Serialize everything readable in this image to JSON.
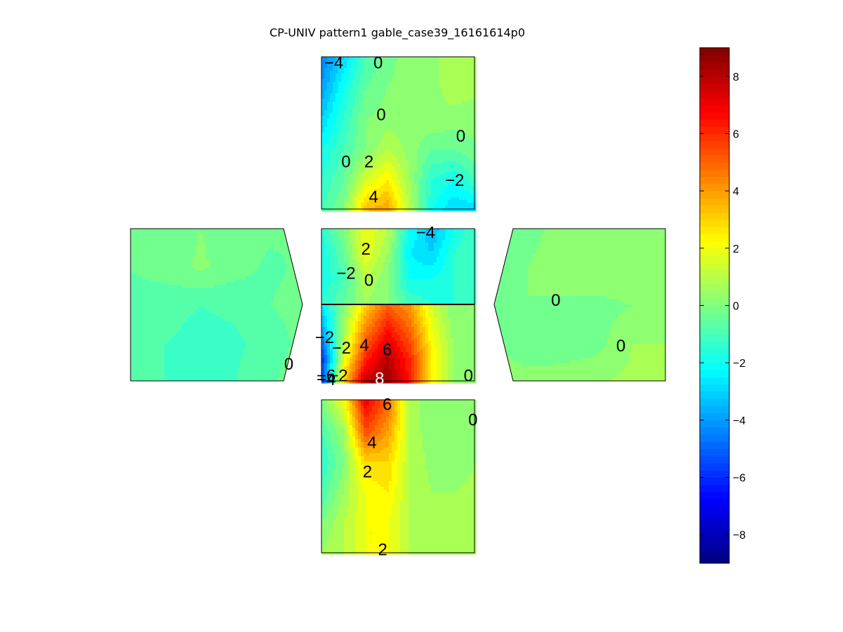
{
  "chart_data": {
    "type": "heatmap",
    "title": "CP-UNIV pattern1 gable_case39_16161614p0",
    "colormap": "jet",
    "clim": [
      -9,
      9
    ],
    "colorbar": {
      "ticks": [
        -8,
        -6,
        -4,
        -2,
        0,
        2,
        4,
        6,
        8
      ],
      "tick_labels": [
        "−8",
        "−6",
        "−4",
        "−2",
        "0",
        "2",
        "4",
        "6",
        "8"
      ]
    },
    "panels": [
      {
        "name": "top-wall",
        "grid": [
          [
            -4.5,
            -3,
            -1,
            -0.2,
            0.3,
            0.5,
            0.5,
            0.6
          ],
          [
            -4,
            -2,
            -0.5,
            0,
            0.2,
            0.3,
            0.8,
            0.7
          ],
          [
            -3,
            -1.5,
            0,
            0.2,
            0.3,
            0.4,
            0.3,
            0.1
          ],
          [
            -2,
            -1,
            0,
            1,
            0.3,
            -0.5,
            -0.5,
            0
          ],
          [
            -1.5,
            -0.5,
            1.5,
            2.5,
            0.5,
            -1.5,
            -2,
            -1
          ],
          [
            -1,
            0,
            3.5,
            4,
            1,
            -2,
            -3,
            -3
          ]
        ],
        "contour_labels": [
          {
            "text": "−4",
            "gx": 0.08,
            "gy": 0.04
          },
          {
            "text": "0",
            "gx": 0.37,
            "gy": 0.04
          },
          {
            "text": "0",
            "gx": 0.39,
            "gy": 0.38
          },
          {
            "text": "0",
            "gx": 0.91,
            "gy": 0.52
          },
          {
            "text": "0",
            "gx": 0.16,
            "gy": 0.69
          },
          {
            "text": "2",
            "gx": 0.31,
            "gy": 0.69
          },
          {
            "text": "−2",
            "gx": 0.87,
            "gy": 0.81
          },
          {
            "text": "4",
            "gx": 0.34,
            "gy": 0.92
          }
        ]
      },
      {
        "name": "left-wall",
        "grid": [
          [
            -0.5,
            -0.4,
            0,
            -0.2,
            -0.4,
            -0.5
          ],
          [
            -0.5,
            -0.3,
            0.1,
            -0.3,
            -0.6,
            -0.4
          ],
          [
            -0.6,
            -0.8,
            -1,
            -0.9,
            -0.5,
            -0.3
          ],
          [
            -0.7,
            -1,
            -1.2,
            -1.1,
            -0.8,
            -0.3
          ],
          [
            -0.8,
            -1,
            -1.1,
            -1,
            -0.6,
            0
          ]
        ],
        "contour_labels": [
          {
            "text": "0",
            "gx": 0.92,
            "gy": 0.89
          }
        ]
      },
      {
        "name": "roof-upper",
        "grid": [
          [
            -1.5,
            0,
            2,
            1,
            -2,
            -3.5,
            -2,
            -1
          ],
          [
            -2,
            -0.5,
            2,
            0.5,
            -2.5,
            -3,
            -1.5,
            -1
          ],
          [
            -2,
            -1,
            1,
            0,
            -2,
            -2,
            -1.5,
            -1
          ],
          [
            -1.5,
            -0.5,
            0.5,
            0,
            -1,
            -1.5,
            -1.5,
            -1
          ]
        ],
        "contour_labels": [
          {
            "text": "−4",
            "gx": 0.68,
            "gy": 0.05
          },
          {
            "text": "2",
            "gx": 0.29,
            "gy": 0.27
          },
          {
            "text": "−2",
            "gx": 0.16,
            "gy": 0.59
          },
          {
            "text": "0",
            "gx": 0.31,
            "gy": 0.68
          }
        ]
      },
      {
        "name": "roof-lower",
        "grid": [
          [
            -2.5,
            0,
            3,
            5,
            4,
            1.5,
            0,
            0
          ],
          [
            -4,
            0.5,
            4.5,
            6.5,
            5,
            2,
            0.3,
            0
          ],
          [
            -6,
            1.5,
            6,
            8,
            6,
            2.5,
            0.5,
            0
          ],
          [
            -6,
            3,
            8,
            8.5,
            6.5,
            2.5,
            0.5,
            0
          ]
        ],
        "contour_labels": [
          {
            "text": "−2",
            "gx": 0.02,
            "gy": 0.43
          },
          {
            "text": "−2",
            "gx": 0.13,
            "gy": 0.57
          },
          {
            "text": "4",
            "gx": 0.28,
            "gy": 0.53
          },
          {
            "text": "6",
            "gx": 0.43,
            "gy": 0.59
          },
          {
            "text": "−6",
            "gx": 0.03,
            "gy": 0.93
          },
          {
            "text": "−2",
            "gx": 0.11,
            "gy": 0.93
          },
          {
            "text": "−4",
            "gx": 0.03,
            "gy": 0.98
          },
          {
            "text": "8",
            "gx": 0.38,
            "gy": 0.97,
            "white": true
          },
          {
            "text": "0",
            "gx": 0.96,
            "gy": 0.93
          }
        ]
      },
      {
        "name": "right-wall",
        "grid": [
          [
            -0.5,
            -0.3,
            0.3,
            0.4,
            0.4,
            0.4
          ],
          [
            -0.3,
            0,
            0.5,
            0.5,
            0.5,
            0.5
          ],
          [
            -0.2,
            0,
            -0.2,
            -0.2,
            0,
            0.2
          ],
          [
            0,
            -0.3,
            -0.3,
            -0.2,
            0.5,
            0.5
          ],
          [
            0.3,
            0.2,
            0.3,
            0.5,
            0.6,
            0.6
          ]
        ],
        "contour_labels": [
          {
            "text": "0",
            "gx": 0.36,
            "gy": 0.47
          },
          {
            "text": "0",
            "gx": 0.74,
            "gy": 0.77
          }
        ]
      },
      {
        "name": "bottom-wall",
        "grid": [
          [
            0,
            2,
            7,
            5,
            1,
            0,
            0,
            0.2
          ],
          [
            -1,
            0.5,
            5.5,
            4,
            1,
            0,
            0,
            0.3
          ],
          [
            -1.5,
            0,
            3,
            3,
            1,
            0.3,
            0.3,
            0.5
          ],
          [
            -1,
            0.5,
            2,
            2.5,
            1,
            0.5,
            0.5,
            0.6
          ],
          [
            0,
            1,
            2,
            2,
            1,
            0.6,
            0.7,
            0.7
          ],
          [
            0.5,
            1,
            2,
            2,
            1,
            0.7,
            0.8,
            0.8
          ]
        ],
        "contour_labels": [
          {
            "text": "6",
            "gx": 0.43,
            "gy": 0.03
          },
          {
            "text": "0",
            "gx": 0.99,
            "gy": 0.13
          },
          {
            "text": "4",
            "gx": 0.33,
            "gy": 0.28
          },
          {
            "text": "2",
            "gx": 0.3,
            "gy": 0.47
          },
          {
            "text": "2",
            "gx": 0.4,
            "gy": 0.98
          }
        ]
      }
    ]
  }
}
